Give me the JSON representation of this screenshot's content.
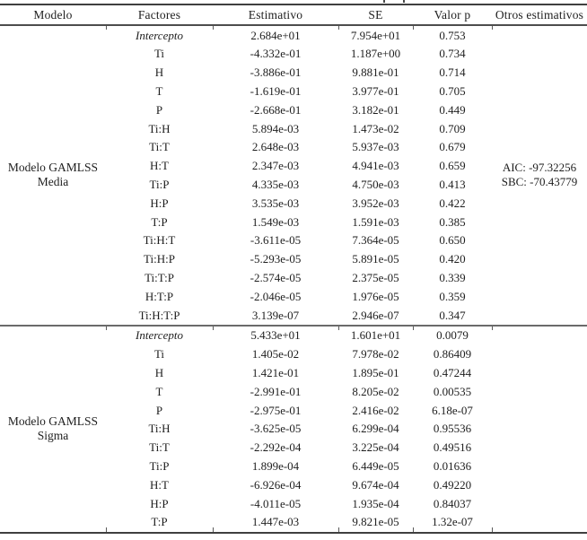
{
  "table": {
    "headers": [
      "Modelo",
      "Factores",
      "Estimativo",
      "SE",
      "Valor p",
      "Otros estimativos"
    ],
    "sections": [
      {
        "model_lines": [
          "Modelo GAMLSS",
          "Media"
        ],
        "others_lines": [
          "AIC: -97.32256",
          "SBC: -70.43779"
        ],
        "rows": [
          {
            "factor": "Intercepto",
            "italic": true,
            "estimate": "2.684e+01",
            "se": "7.954e+01",
            "p": "0.753"
          },
          {
            "factor": "Ti",
            "italic": false,
            "estimate": "-4.332e-01",
            "se": "1.187e+00",
            "p": "0.734"
          },
          {
            "factor": "H",
            "italic": false,
            "estimate": "-3.886e-01",
            "se": "9.881e-01",
            "p": "0.714"
          },
          {
            "factor": "T",
            "italic": false,
            "estimate": "-1.619e-01",
            "se": "3.977e-01",
            "p": "0.705"
          },
          {
            "factor": "P",
            "italic": false,
            "estimate": "-2.668e-01",
            "se": "3.182e-01",
            "p": "0.449"
          },
          {
            "factor": "Ti:H",
            "italic": false,
            "estimate": "5.894e-03",
            "se": "1.473e-02",
            "p": "0.709"
          },
          {
            "factor": "Ti:T",
            "italic": false,
            "estimate": "2.648e-03",
            "se": "5.937e-03",
            "p": "0.679"
          },
          {
            "factor": "H:T",
            "italic": false,
            "estimate": "2.347e-03",
            "se": "4.941e-03",
            "p": "0.659"
          },
          {
            "factor": "Ti:P",
            "italic": false,
            "estimate": "4.335e-03",
            "se": "4.750e-03",
            "p": "0.413"
          },
          {
            "factor": "H:P",
            "italic": false,
            "estimate": "3.535e-03",
            "se": "3.952e-03",
            "p": "0.422"
          },
          {
            "factor": "T:P",
            "italic": false,
            "estimate": "1.549e-03",
            "se": "1.591e-03",
            "p": "0.385"
          },
          {
            "factor": "Ti:H:T",
            "italic": false,
            "estimate": "-3.611e-05",
            "se": "7.364e-05",
            "p": "0.650"
          },
          {
            "factor": "Ti:H:P",
            "italic": false,
            "estimate": "-5.293e-05",
            "se": "5.891e-05",
            "p": "0.420"
          },
          {
            "factor": "Ti:T:P",
            "italic": false,
            "estimate": "-2.574e-05",
            "se": "2.375e-05",
            "p": "0.339"
          },
          {
            "factor": "H:T:P",
            "italic": false,
            "estimate": "-2.046e-05",
            "se": "1.976e-05",
            "p": "0.359"
          },
          {
            "factor": "Ti:H:T:P",
            "italic": false,
            "estimate": "3.139e-07",
            "se": "2.946e-07",
            "p": "0.347"
          }
        ]
      },
      {
        "model_lines": [
          "Modelo GAMLSS",
          "Sigma"
        ],
        "others_lines": [],
        "rows": [
          {
            "factor": "Intercepto",
            "italic": true,
            "estimate": "5.433e+01",
            "se": "1.601e+01",
            "p": "0.0079"
          },
          {
            "factor": "Ti",
            "italic": false,
            "estimate": "1.405e-02",
            "se": "7.978e-02",
            "p": "0.86409"
          },
          {
            "factor": "H",
            "italic": false,
            "estimate": "1.421e-01",
            "se": "1.895e-01",
            "p": "0.47244"
          },
          {
            "factor": "T",
            "italic": false,
            "estimate": "-2.991e-01",
            "se": "8.205e-02",
            "p": "0.00535"
          },
          {
            "factor": "P",
            "italic": false,
            "estimate": "-2.975e-01",
            "se": "2.416e-02",
            "p": "6.18e-07"
          },
          {
            "factor": "Ti:H",
            "italic": false,
            "estimate": "-3.625e-05",
            "se": "6.299e-04",
            "p": "0.95536"
          },
          {
            "factor": "Ti:T",
            "italic": false,
            "estimate": "-2.292e-04",
            "se": "3.225e-04",
            "p": "0.49516"
          },
          {
            "factor": "Ti:P",
            "italic": false,
            "estimate": "1.899e-04",
            "se": "6.449e-05",
            "p": "0.01636"
          },
          {
            "factor": "H:T",
            "italic": false,
            "estimate": "-6.926e-04",
            "se": "9.674e-04",
            "p": "0.49220"
          },
          {
            "factor": "H:P",
            "italic": false,
            "estimate": "-4.011e-05",
            "se": "1.935e-04",
            "p": "0.84037"
          },
          {
            "factor": "T:P",
            "italic": false,
            "estimate": "1.447e-03",
            "se": "9.821e-05",
            "p": "1.32e-07"
          }
        ]
      }
    ]
  },
  "colors": {
    "text": "#1e1e1e",
    "rule_dark": "#3f3f3f",
    "rule_mid": "#4d4d4d",
    "rule_light": "#6a6a6a",
    "background": "#ffffff"
  }
}
